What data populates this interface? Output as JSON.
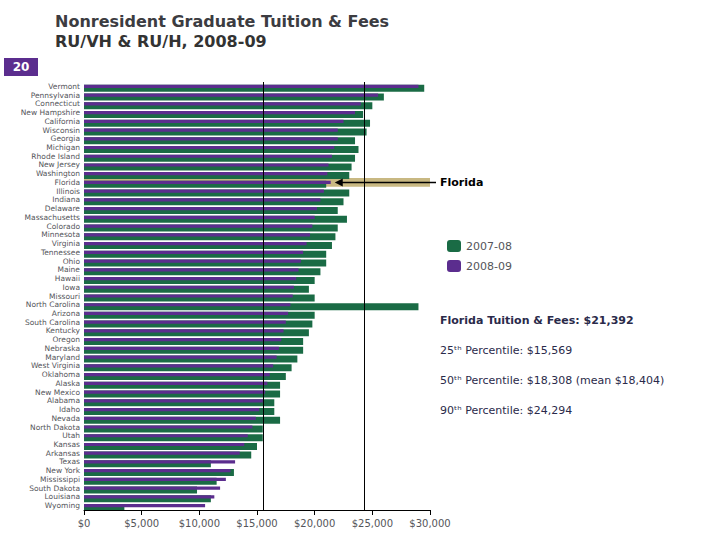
{
  "chart_data": {
    "type": "bar",
    "orientation": "horizontal",
    "title": "Nonresident Graduate Tuition & Fees",
    "subtitle": "RU/VH & RU/H, 2008-09",
    "rank_label": "20",
    "categories": [
      "Vermont",
      "Pennsylvania",
      "Connecticut",
      "New Hampshire",
      "California",
      "Wisconsin",
      "Georgia",
      "Michigan",
      "Rhode Island",
      "New Jersey",
      "Washington",
      "Florida",
      "Illinois",
      "Indiana",
      "Delaware",
      "Massachusetts",
      "Colorado",
      "Minnesota",
      "Virginia",
      "Tennessee",
      "Ohio",
      "Maine",
      "Hawaii",
      "Iowa",
      "Missouri",
      "North Carolina",
      "Arizona",
      "South Carolina",
      "Kentucky",
      "Oregon",
      "Nebraska",
      "Maryland",
      "West Virginia",
      "Oklahoma",
      "Alaska",
      "New Mexico",
      "Alabama",
      "Idaho",
      "Nevada",
      "North Dakota",
      "Utah",
      "Kansas",
      "Arkansas",
      "Texas",
      "New York",
      "Mississippi",
      "South Dakota",
      "Louisiana",
      "Wyoming"
    ],
    "series": [
      {
        "name": "2007-08",
        "color": "#1a6b45",
        "values": [
          29500,
          26000,
          25000,
          24200,
          24800,
          24500,
          23500,
          23800,
          23500,
          23200,
          23000,
          21000,
          23000,
          22500,
          22000,
          22800,
          22000,
          21800,
          21500,
          21000,
          21000,
          20500,
          20000,
          19500,
          20000,
          29000,
          20000,
          19800,
          19500,
          19000,
          19000,
          18500,
          18000,
          17500,
          17000,
          17000,
          16500,
          16500,
          17000,
          15500,
          15500,
          15000,
          14500,
          11000,
          13000,
          11500,
          9800,
          11000,
          3500
        ]
      },
      {
        "name": "2008-09",
        "color": "#5b2d8e",
        "values": [
          29000,
          25500,
          24000,
          23500,
          22500,
          22000,
          22000,
          21700,
          21500,
          21200,
          21100,
          21392,
          20800,
          20500,
          20200,
          20000,
          19800,
          19600,
          19300,
          19000,
          18800,
          18600,
          18400,
          18200,
          18100,
          17900,
          17700,
          17500,
          17300,
          17100,
          16900,
          16700,
          16400,
          16100,
          15900,
          15700,
          15500,
          15200,
          14900,
          14600,
          14200,
          13900,
          13500,
          13100,
          12700,
          12300,
          11800,
          11300,
          10500
        ]
      }
    ],
    "xlim": [
      0,
      30000
    ],
    "xticks": [
      {
        "value": 0,
        "label": "$0"
      },
      {
        "value": 5000,
        "label": "$5,000"
      },
      {
        "value": 10000,
        "label": "$10,000"
      },
      {
        "value": 15000,
        "label": "$15,000"
      },
      {
        "value": 20000,
        "label": "$20,000"
      },
      {
        "value": 25000,
        "label": "$25,000"
      },
      {
        "value": 30000,
        "label": "$30,000"
      }
    ],
    "vlines": [
      15569,
      24294
    ],
    "highlight": {
      "category": "Florida",
      "color": "#c8b882"
    },
    "arrow": {
      "text": "Florida",
      "category": "Florida"
    },
    "annotations": [
      "Florida Tuition & Fees: $21,392",
      "25ᵗʰ Percentile: $15,569",
      "50ᵗʰ Percentile: $18,308 (mean $18,404)",
      "90ᵗʰ Percentile: $24,294"
    ],
    "legend": "right",
    "grid": false
  }
}
